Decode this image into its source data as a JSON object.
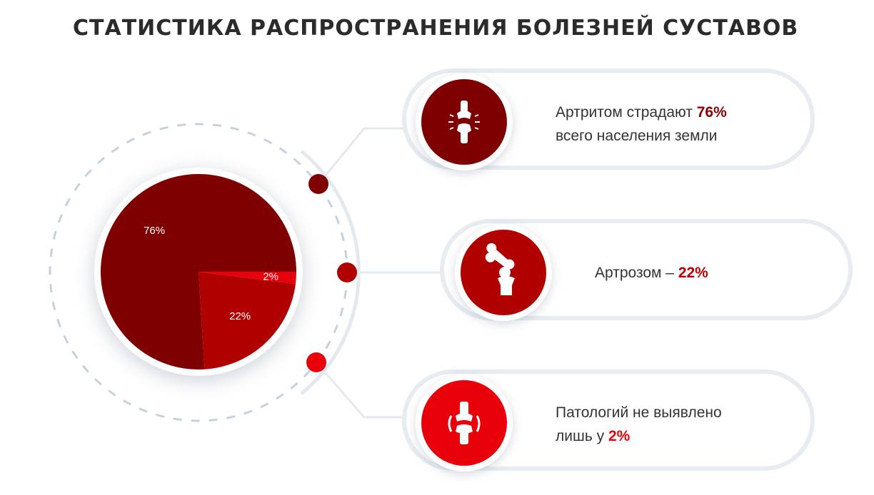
{
  "title": "СТАТИСТИКА РАСПРОСТРАНЕНИЯ БОЛЕЗНЕЙ СУСТАВОВ",
  "colors": {
    "arthritis": "#7f0000",
    "arthrosis": "#b00000",
    "healthy": "#e8000b",
    "ring": "#e3e9ef",
    "dashed": "#c5d2de"
  },
  "chart_data": {
    "type": "pie",
    "series": [
      {
        "label": "76%",
        "value": 76,
        "color": "#7f0000"
      },
      {
        "label": "22%",
        "value": 22,
        "color": "#b00000"
      },
      {
        "label": "2%",
        "value": 2,
        "color": "#e8000b"
      }
    ]
  },
  "cards": [
    {
      "icon": "inflamed-knee-joint-icon",
      "text_before": "Артритом страдают ",
      "value": "76%",
      "text_after": "всего населения земли"
    },
    {
      "icon": "broken-bone-joint-icon",
      "text_before": "Артрозом – ",
      "value": "22%",
      "text_after": ""
    },
    {
      "icon": "healthy-knee-joint-icon",
      "text_before": "Патологий не выявлено ",
      "value": "",
      "text_after": "лишь у ",
      "value2": "2%"
    }
  ]
}
